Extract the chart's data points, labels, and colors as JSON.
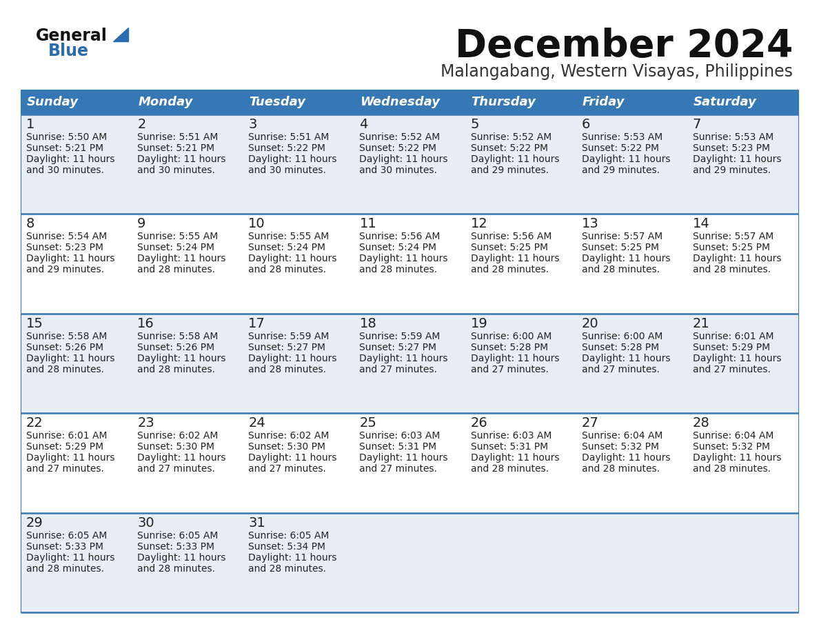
{
  "title": "December 2024",
  "subtitle": "Malangabang, Western Visayas, Philippines",
  "header_color": "#3578b5",
  "header_text_color": "#ffffff",
  "days_of_week": [
    "Sunday",
    "Monday",
    "Tuesday",
    "Wednesday",
    "Thursday",
    "Friday",
    "Saturday"
  ],
  "bg_color": "#ffffff",
  "cell_bg_even": "#e8eef5",
  "cell_bg_odd": "#ffffff",
  "border_color": "#3578b5",
  "text_color": "#222222",
  "title_color": "#111111",
  "subtitle_color": "#333333",
  "logo_general_color": "#111111",
  "logo_blue_color": "#2b6cb0",
  "logo_triangle_color": "#2b6cb0",
  "calendar": [
    [
      {
        "day": 1,
        "sunrise": "5:50 AM",
        "sunset": "5:21 PM",
        "daylight": "11 hours and 30 minutes."
      },
      {
        "day": 2,
        "sunrise": "5:51 AM",
        "sunset": "5:21 PM",
        "daylight": "11 hours and 30 minutes."
      },
      {
        "day": 3,
        "sunrise": "5:51 AM",
        "sunset": "5:22 PM",
        "daylight": "11 hours and 30 minutes."
      },
      {
        "day": 4,
        "sunrise": "5:52 AM",
        "sunset": "5:22 PM",
        "daylight": "11 hours and 30 minutes."
      },
      {
        "day": 5,
        "sunrise": "5:52 AM",
        "sunset": "5:22 PM",
        "daylight": "11 hours and 29 minutes."
      },
      {
        "day": 6,
        "sunrise": "5:53 AM",
        "sunset": "5:22 PM",
        "daylight": "11 hours and 29 minutes."
      },
      {
        "day": 7,
        "sunrise": "5:53 AM",
        "sunset": "5:23 PM",
        "daylight": "11 hours and 29 minutes."
      }
    ],
    [
      {
        "day": 8,
        "sunrise": "5:54 AM",
        "sunset": "5:23 PM",
        "daylight": "11 hours and 29 minutes."
      },
      {
        "day": 9,
        "sunrise": "5:55 AM",
        "sunset": "5:24 PM",
        "daylight": "11 hours and 28 minutes."
      },
      {
        "day": 10,
        "sunrise": "5:55 AM",
        "sunset": "5:24 PM",
        "daylight": "11 hours and 28 minutes."
      },
      {
        "day": 11,
        "sunrise": "5:56 AM",
        "sunset": "5:24 PM",
        "daylight": "11 hours and 28 minutes."
      },
      {
        "day": 12,
        "sunrise": "5:56 AM",
        "sunset": "5:25 PM",
        "daylight": "11 hours and 28 minutes."
      },
      {
        "day": 13,
        "sunrise": "5:57 AM",
        "sunset": "5:25 PM",
        "daylight": "11 hours and 28 minutes."
      },
      {
        "day": 14,
        "sunrise": "5:57 AM",
        "sunset": "5:25 PM",
        "daylight": "11 hours and 28 minutes."
      }
    ],
    [
      {
        "day": 15,
        "sunrise": "5:58 AM",
        "sunset": "5:26 PM",
        "daylight": "11 hours and 28 minutes."
      },
      {
        "day": 16,
        "sunrise": "5:58 AM",
        "sunset": "5:26 PM",
        "daylight": "11 hours and 28 minutes."
      },
      {
        "day": 17,
        "sunrise": "5:59 AM",
        "sunset": "5:27 PM",
        "daylight": "11 hours and 28 minutes."
      },
      {
        "day": 18,
        "sunrise": "5:59 AM",
        "sunset": "5:27 PM",
        "daylight": "11 hours and 27 minutes."
      },
      {
        "day": 19,
        "sunrise": "6:00 AM",
        "sunset": "5:28 PM",
        "daylight": "11 hours and 27 minutes."
      },
      {
        "day": 20,
        "sunrise": "6:00 AM",
        "sunset": "5:28 PM",
        "daylight": "11 hours and 27 minutes."
      },
      {
        "day": 21,
        "sunrise": "6:01 AM",
        "sunset": "5:29 PM",
        "daylight": "11 hours and 27 minutes."
      }
    ],
    [
      {
        "day": 22,
        "sunrise": "6:01 AM",
        "sunset": "5:29 PM",
        "daylight": "11 hours and 27 minutes."
      },
      {
        "day": 23,
        "sunrise": "6:02 AM",
        "sunset": "5:30 PM",
        "daylight": "11 hours and 27 minutes."
      },
      {
        "day": 24,
        "sunrise": "6:02 AM",
        "sunset": "5:30 PM",
        "daylight": "11 hours and 27 minutes."
      },
      {
        "day": 25,
        "sunrise": "6:03 AM",
        "sunset": "5:31 PM",
        "daylight": "11 hours and 27 minutes."
      },
      {
        "day": 26,
        "sunrise": "6:03 AM",
        "sunset": "5:31 PM",
        "daylight": "11 hours and 28 minutes."
      },
      {
        "day": 27,
        "sunrise": "6:04 AM",
        "sunset": "5:32 PM",
        "daylight": "11 hours and 28 minutes."
      },
      {
        "day": 28,
        "sunrise": "6:04 AM",
        "sunset": "5:32 PM",
        "daylight": "11 hours and 28 minutes."
      }
    ],
    [
      {
        "day": 29,
        "sunrise": "6:05 AM",
        "sunset": "5:33 PM",
        "daylight": "11 hours and 28 minutes."
      },
      {
        "day": 30,
        "sunrise": "6:05 AM",
        "sunset": "5:33 PM",
        "daylight": "11 hours and 28 minutes."
      },
      {
        "day": 31,
        "sunrise": "6:05 AM",
        "sunset": "5:34 PM",
        "daylight": "11 hours and 28 minutes."
      },
      null,
      null,
      null,
      null
    ]
  ]
}
